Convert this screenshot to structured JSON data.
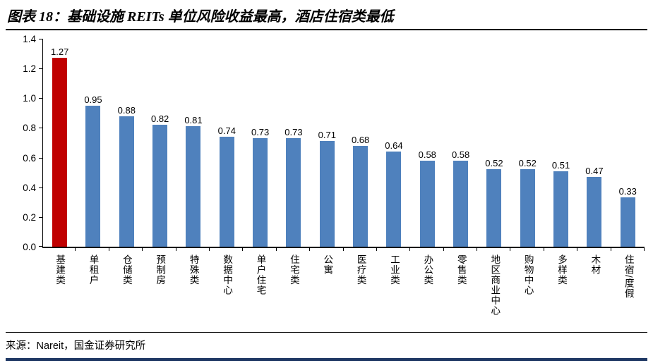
{
  "header": {
    "title": "图表 18：基础设施 REITs 单位风险收益最高，酒店住宿类最低"
  },
  "footer": {
    "source": "来源：Nareit，国金证券研究所"
  },
  "colors": {
    "bar": "#4F81BD",
    "highlight": "#C00000",
    "bottom_rule": "#1F3864"
  },
  "chart_data": {
    "type": "bar",
    "title": "基础设施 REITs 单位风险收益最高，酒店住宿类最低",
    "categories": [
      "基建类",
      "单租户",
      "仓储类",
      "预制房",
      "特殊类",
      "数据中心",
      "单户住宅",
      "住宅类",
      "公寓",
      "医疗类",
      "工业类",
      "办公类",
      "零售类",
      "地区商业中心",
      "购物中心",
      "多样类",
      "木材",
      "住宿/度假"
    ],
    "values": [
      1.27,
      0.95,
      0.88,
      0.82,
      0.81,
      0.74,
      0.73,
      0.73,
      0.71,
      0.68,
      0.64,
      0.58,
      0.58,
      0.52,
      0.52,
      0.51,
      0.47,
      0.33
    ],
    "highlight_index": 0,
    "xlabel": "",
    "ylabel": "",
    "ylim": [
      0,
      1.4
    ],
    "yticks": [
      0.0,
      0.2,
      0.4,
      0.6,
      0.8,
      1.0,
      1.2,
      1.4
    ],
    "grid": false,
    "legend": "none"
  }
}
